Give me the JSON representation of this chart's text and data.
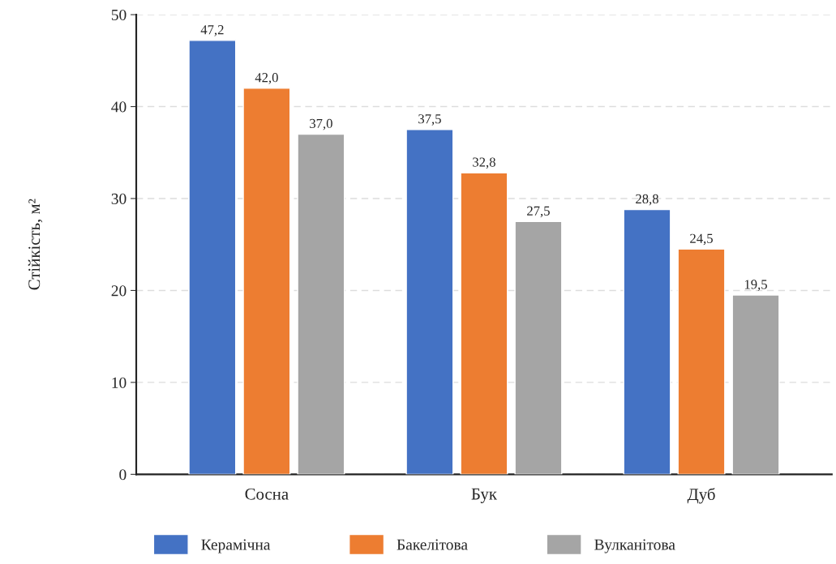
{
  "chart_data": {
    "type": "bar",
    "ylabel": "Стійкість, м²",
    "categories": [
      "Сосна",
      "Бук",
      "Дуб"
    ],
    "series": [
      {
        "name": "Керамічна",
        "color": "#4472c4",
        "values": [
          47.2,
          37.5,
          28.8
        ],
        "value_labels": [
          "47,2",
          "37,5",
          "28,8"
        ]
      },
      {
        "name": "Бакелітова",
        "color": "#ed7d31",
        "values": [
          42.0,
          32.8,
          24.5
        ],
        "value_labels": [
          "42,0",
          "32,8",
          "24,5"
        ]
      },
      {
        "name": "Вулканітова",
        "color": "#a5a5a5",
        "values": [
          37.0,
          27.5,
          19.5
        ],
        "value_labels": [
          "37,0",
          "27,5",
          "19,5"
        ]
      }
    ],
    "ylim": [
      0,
      50
    ],
    "yticks": [
      0,
      10,
      20,
      30,
      40,
      50
    ],
    "grid": "y",
    "legend": "bottom"
  }
}
